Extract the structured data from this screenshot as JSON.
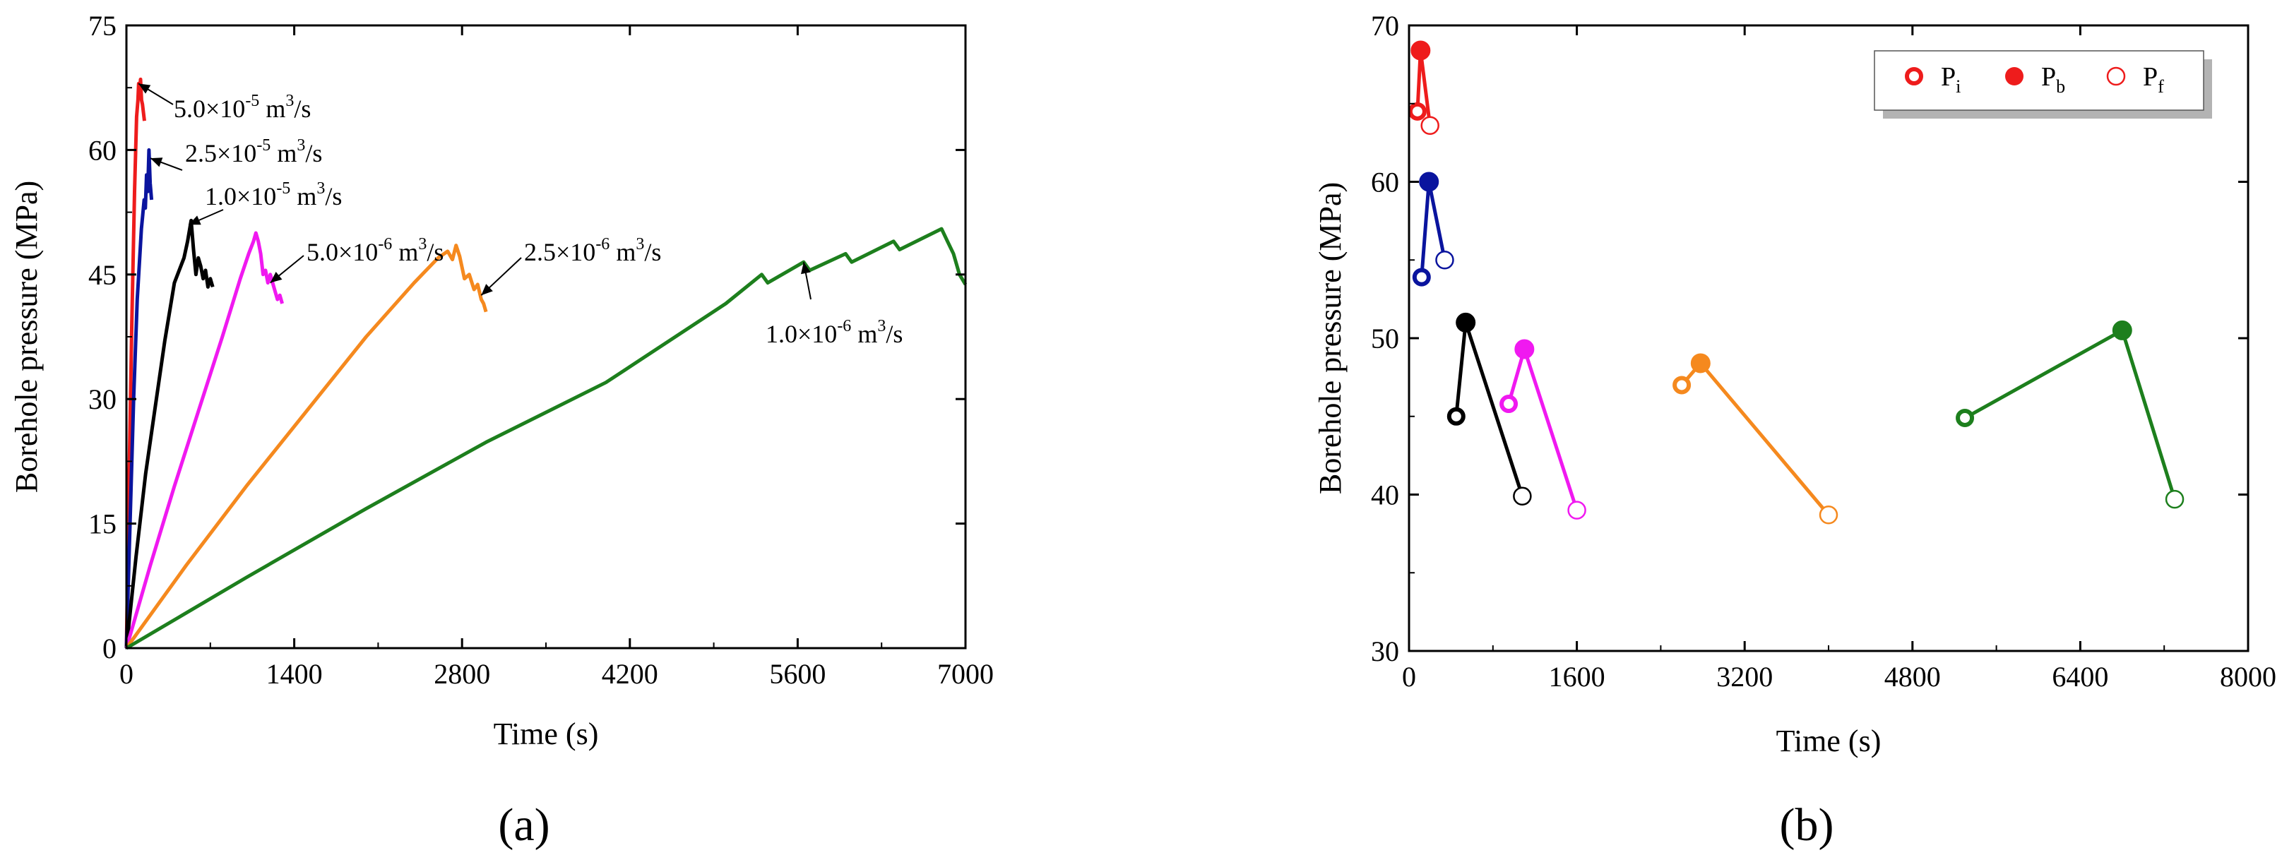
{
  "chart_data": [
    {
      "panel_label": "(a)",
      "type": "line",
      "title": "",
      "xlabel": "Time (s)",
      "ylabel": "Borehole pressure (MPa)",
      "xlim": [
        0,
        7000
      ],
      "ylim": [
        0,
        75
      ],
      "xticks": [
        0,
        1400,
        2800,
        4200,
        5600,
        7000
      ],
      "yticks": [
        0,
        15,
        30,
        45,
        60,
        75
      ],
      "grid": false,
      "series": [
        {
          "name": "5.0×10-5 m3/s",
          "color": "#ee1c1c",
          "x": [
            0,
            22,
            45,
            68,
            85,
            96,
            102,
            110,
            118,
            126,
            134,
            142,
            150
          ],
          "y": [
            0,
            20,
            39,
            55,
            64,
            66,
            68,
            67,
            68.5,
            66,
            65.5,
            64.5,
            63.5
          ]
        },
        {
          "name": "2.5×10-5 m3/s",
          "color": "#0a149e",
          "x": [
            0,
            30,
            60,
            90,
            115,
            125,
            135,
            148,
            158,
            168,
            178,
            188,
            198,
            210
          ],
          "y": [
            0,
            15,
            30,
            42,
            48,
            50.5,
            52,
            54,
            53,
            57,
            55,
            60,
            56,
            54
          ]
        },
        {
          "name": "1.0×10-5 m3/s",
          "color": "#000000",
          "x": [
            0,
            80,
            160,
            240,
            320,
            400,
            440,
            480,
            510,
            540,
            560,
            580,
            600,
            620,
            640,
            660,
            680,
            700,
            720
          ],
          "y": [
            0,
            11,
            21,
            29,
            37,
            44,
            45.5,
            47,
            49,
            51.5,
            48,
            45,
            47,
            46,
            44.5,
            45.5,
            43.5,
            44.5,
            43.5
          ]
        },
        {
          "name": "5.0×10-6 m3/s",
          "color": "#f019f0",
          "x": [
            0,
            200,
            400,
            600,
            800,
            950,
            1020,
            1060,
            1080,
            1100,
            1120,
            1140,
            1160,
            1180,
            1200,
            1230,
            1260,
            1280,
            1300
          ],
          "y": [
            0,
            10,
            19.5,
            28.5,
            37.5,
            44.5,
            47.5,
            49,
            50,
            49,
            47.5,
            45,
            45.5,
            44,
            45,
            43.5,
            42,
            42.5,
            41.5
          ]
        },
        {
          "name": "2.5×10-6 m3/s",
          "color": "#f5891e",
          "x": [
            0,
            500,
            1000,
            1500,
            2000,
            2400,
            2600,
            2680,
            2720,
            2750,
            2780,
            2820,
            2860,
            2900,
            2930,
            2960,
            2980,
            3000
          ],
          "y": [
            0,
            10,
            19.5,
            28.5,
            37.5,
            44,
            47,
            47.8,
            46.8,
            48.5,
            47.2,
            44.5,
            45,
            43.2,
            43.8,
            42,
            41.5,
            40.5
          ]
        },
        {
          "name": "1.0×10-6 m3/s",
          "color": "#1d7f1d",
          "x": [
            0,
            1000,
            2000,
            3000,
            4000,
            5000,
            5300,
            5350,
            5650,
            5700,
            6000,
            6050,
            6400,
            6450,
            6800,
            6850,
            6900,
            6950,
            7000
          ],
          "y": [
            0,
            8.5,
            16.8,
            24.8,
            32,
            41.5,
            45,
            44,
            46.5,
            45.5,
            47.5,
            46.5,
            49,
            48,
            50.5,
            49,
            47.5,
            45,
            43.8
          ]
        }
      ],
      "annotations": [
        {
          "base": "5.0×10",
          "exp": "-5",
          "unit": " m",
          "unit_exp": "3",
          "tail": "/s",
          "color": "#000000"
        },
        {
          "base": "2.5×10",
          "exp": "-5",
          "unit": " m",
          "unit_exp": "3",
          "tail": "/s",
          "color": "#000000"
        },
        {
          "base": "1.0×10",
          "exp": "-5",
          "unit": " m",
          "unit_exp": "3",
          "tail": "/s",
          "color": "#000000"
        },
        {
          "base": "5.0×10",
          "exp": "-6",
          "unit": " m",
          "unit_exp": "3",
          "tail": "/s",
          "color": "#000000"
        },
        {
          "base": "2.5×10",
          "exp": "-6",
          "unit": " m",
          "unit_exp": "3",
          "tail": "/s",
          "color": "#000000"
        },
        {
          "base": "1.0×10",
          "exp": "-6",
          "unit": " m",
          "unit_exp": "3",
          "tail": "/s",
          "color": "#000000"
        }
      ]
    },
    {
      "panel_label": "(b)",
      "type": "scatter",
      "title": "",
      "xlabel": "Time (s)",
      "ylabel": "Borehole pressure (MPa)",
      "xlim": [
        0,
        8000
      ],
      "ylim": [
        30,
        70
      ],
      "xticks": [
        0,
        1600,
        3200,
        4800,
        6400,
        8000
      ],
      "yticks": [
        30,
        40,
        50,
        60,
        70
      ],
      "grid": false,
      "legend": {
        "position": "top-right",
        "entries": [
          {
            "symbol": "pi",
            "label": "P",
            "sub": "i"
          },
          {
            "symbol": "pb",
            "label": "P",
            "sub": "b"
          },
          {
            "symbol": "pf",
            "label": "P",
            "sub": "f"
          }
        ]
      },
      "series": [
        {
          "name": "5.0×10-5 m3/s",
          "color": "#ee1c1c",
          "Pi": [
            80,
            64.5
          ],
          "Pb": [
            110,
            68.4
          ],
          "Pf": [
            200,
            63.6
          ]
        },
        {
          "name": "2.5×10-5 m3/s",
          "color": "#0a149e",
          "Pi": [
            120,
            53.9
          ],
          "Pb": [
            190,
            60
          ],
          "Pf": [
            340,
            55
          ]
        },
        {
          "name": "1.0×10-5 m3/s",
          "color": "#000000",
          "Pi": [
            450,
            45
          ],
          "Pb": [
            540,
            51
          ],
          "Pf": [
            1080,
            39.9
          ]
        },
        {
          "name": "5.0×10-6 m3/s",
          "color": "#f019f0",
          "Pi": [
            950,
            45.8
          ],
          "Pb": [
            1100,
            49.3
          ],
          "Pf": [
            1600,
            39
          ]
        },
        {
          "name": "2.5×10-6 m3/s",
          "color": "#f5891e",
          "Pi": [
            2600,
            47
          ],
          "Pb": [
            2780,
            48.4
          ],
          "Pf": [
            4000,
            38.7
          ]
        },
        {
          "name": "1.0×10-6 m3/s",
          "color": "#1d7f1d",
          "Pi": [
            5300,
            44.9
          ],
          "Pb": [
            6800,
            50.5
          ],
          "Pf": [
            7300,
            39.7
          ]
        }
      ]
    }
  ]
}
